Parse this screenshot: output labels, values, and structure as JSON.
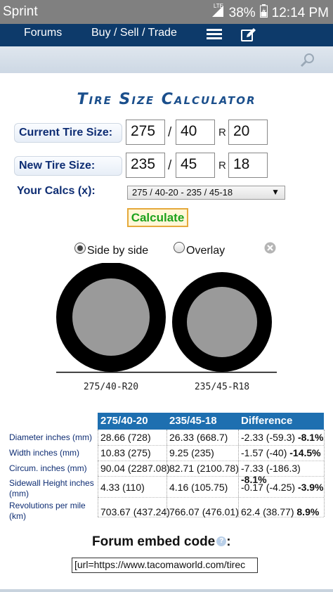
{
  "status_bar": {
    "carrier": "Sprint",
    "battery": "38%",
    "time": "12:14 PM",
    "network_badge": "LTE"
  },
  "nav": {
    "forums": "Forums",
    "buy_sell_trade": "Buy / Sell / Trade",
    "icons": [
      "menu-icon",
      "edit-icon"
    ]
  },
  "search": {
    "icon": "search-icon"
  },
  "calculator": {
    "title": "Tire Size Calculator",
    "current_label": "Current Tire Size:",
    "current": {
      "width": "275",
      "aspect": "40",
      "rim_prefix": "R",
      "rim": "20"
    },
    "new_label": "New Tire Size:",
    "new": {
      "width": "235",
      "aspect": "45",
      "rim_prefix": "R",
      "rim": "18"
    },
    "separator": "/",
    "calcs_label": "Your Calcs (x):",
    "calcs_selected": "275 / 40-20 - 235 / 45-18",
    "calculate_button": "Calculate",
    "view_options": {
      "side_by_side": "Side by side",
      "overlay": "Overlay",
      "selected": "side_by_side"
    },
    "tire_labels": {
      "current": "275/40-R20",
      "new": "235/45-R18"
    }
  },
  "results": {
    "headers": [
      "275/40-20",
      "235/45-18",
      "Difference"
    ],
    "rows": [
      {
        "label": "Diameter inches (mm)",
        "current": "28.66 (728)",
        "new": "26.33 (668.7)",
        "diff": "-2.33 (-59.3)",
        "pct": "-8.1%"
      },
      {
        "label": "Width inches (mm)",
        "current": "10.83 (275)",
        "new": "9.25 (235)",
        "diff": "-1.57 (-40)",
        "pct": "-14.5%"
      },
      {
        "label": "Circum. inches (mm)",
        "current": "90.04 (2287.08)",
        "new": "82.71 (2100.78)",
        "diff": "-7.33 (-186.3)",
        "pct": "-8.1%"
      },
      {
        "label": "Sidewall Height inches (mm)",
        "current": "4.33 (110)",
        "new": "4.16 (105.75)",
        "diff": "-0.17 (-4.25)",
        "pct": "-3.9%"
      },
      {
        "label": "Revolutions per mile (km)",
        "current": "703.67 (437.24)",
        "new": "766.07 (476.01)",
        "diff": "62.4 (38.77)",
        "pct": "8.9%"
      }
    ]
  },
  "embed": {
    "title": "Forum embed code",
    "colon": ":",
    "help": "?",
    "value": "[url=https://www.tacomaworld.com/tirec"
  },
  "colors": {
    "nav_bg": "#0d3a6a",
    "title_blue": "#1b4f8c",
    "label_navy": "#0e2d73",
    "header_blue": "#1e6fb0",
    "calculate_green": "#1ca21c",
    "calculate_border": "#e5a93b"
  }
}
